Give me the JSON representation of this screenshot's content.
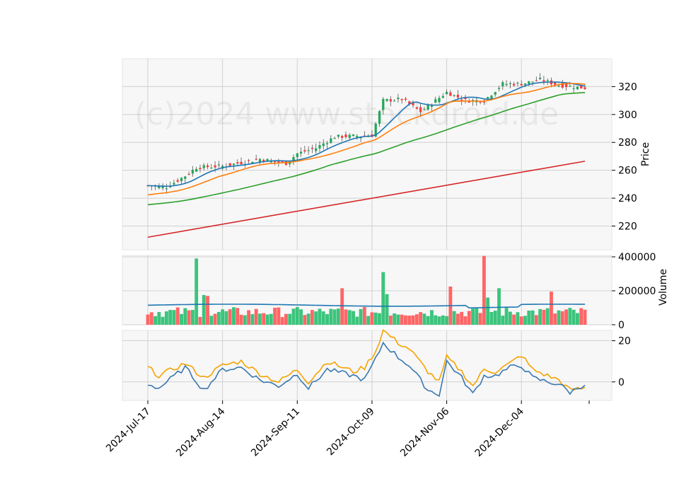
{
  "watermark": "(c)2024 www.stockdroid.de",
  "dates": [
    "2024-Jul-17",
    "2024-Aug-14",
    "2024-Sep-11",
    "2024-Oct-09",
    "2024-Nov-06",
    "2024-Dec-04"
  ],
  "colors": {
    "up": "#26a65b",
    "down": "#ff3b3b",
    "ma_fast": "#1f77b4",
    "ma_mid": "#ff7f0e",
    "ma_slow": "#2ca02c",
    "ma_long": "#d62728",
    "osc_a": "#f5a300",
    "osc_b": "#3a78b0",
    "panel_bg": "#f7f7f7",
    "grid": "#d0d0d0"
  },
  "chart_data": [
    {
      "type": "candlestick",
      "ylabel": "Price",
      "ylim": [
        203,
        340
      ],
      "yticks": [
        220,
        240,
        260,
        280,
        300,
        320
      ],
      "x_start": "2024-Jul-17",
      "x_end": "2024-Dec-27",
      "close_anchors": [
        [
          "2024-Jul-17",
          249
        ],
        [
          "2024-Jul-24",
          248
        ],
        [
          "2024-Jul-31",
          256
        ],
        [
          "2024-Aug-05",
          262
        ],
        [
          "2024-Aug-14",
          263
        ],
        [
          "2024-Aug-28",
          268
        ],
        [
          "2024-Sep-06",
          265
        ],
        [
          "2024-Sep-11",
          272
        ],
        [
          "2024-Sep-18",
          276
        ],
        [
          "2024-Sep-25",
          284
        ],
        [
          "2024-Oct-09",
          285
        ],
        [
          "2024-Oct-14",
          310
        ],
        [
          "2024-Oct-21",
          311
        ],
        [
          "2024-Oct-28",
          302
        ],
        [
          "2024-Nov-06",
          316
        ],
        [
          "2024-Nov-13",
          310
        ],
        [
          "2024-Nov-20",
          310
        ],
        [
          "2024-Nov-27",
          322
        ],
        [
          "2024-Dec-04",
          322
        ],
        [
          "2024-Dec-11",
          325
        ],
        [
          "2024-Dec-18",
          321
        ],
        [
          "2024-Dec-27",
          319
        ]
      ],
      "moving_averages": [
        {
          "window": 10,
          "color": "#1f77b4"
        },
        {
          "window": 20,
          "color": "#ff7f0e"
        },
        {
          "window": 50,
          "color": "#2ca02c"
        }
      ],
      "long_average_line": {
        "start": [
          "2024-Jul-17",
          212
        ],
        "end": [
          "2024-Dec-27",
          266.5
        ],
        "color": "#d62728"
      }
    },
    {
      "type": "bar",
      "ylabel": "Volume",
      "ylim": [
        0,
        400000
      ],
      "yticks": [
        0,
        200000,
        400000
      ],
      "typical_volume": 75000,
      "spikes": [
        [
          "2024-Aug-05",
          390000
        ],
        [
          "2024-Aug-07",
          175000
        ],
        [
          "2024-Aug-08",
          170000
        ],
        [
          "2024-Sep-27",
          215000
        ],
        [
          "2024-Oct-14",
          310000
        ],
        [
          "2024-Oct-15",
          180000
        ],
        [
          "2024-Nov-07",
          225000
        ],
        [
          "2024-Nov-20",
          405000
        ],
        [
          "2024-Nov-21",
          160000
        ],
        [
          "2024-Nov-26",
          215000
        ],
        [
          "2024-Dec-16",
          195000
        ]
      ],
      "average_line": {
        "level": 115000,
        "color": "#1f77b4"
      }
    },
    {
      "type": "line",
      "ylim": [
        -9,
        25
      ],
      "yticks": [
        0,
        20
      ],
      "series": [
        {
          "color": "#f5a300",
          "anchors": [
            [
              "2024-Jul-17",
              7
            ],
            [
              "2024-Jul-22",
              3
            ],
            [
              "2024-Jul-31",
              9
            ],
            [
              "2024-Aug-07",
              2
            ],
            [
              "2024-Aug-14",
              8
            ],
            [
              "2024-Aug-21",
              10
            ],
            [
              "2024-Aug-28",
              4
            ],
            [
              "2024-Sep-04",
              0
            ],
            [
              "2024-Sep-11",
              6
            ],
            [
              "2024-Sep-16",
              0
            ],
            [
              "2024-Sep-23",
              10
            ],
            [
              "2024-Oct-02",
              5
            ],
            [
              "2024-Oct-07",
              7
            ],
            [
              "2024-Oct-10",
              15
            ],
            [
              "2024-Oct-14",
              25
            ],
            [
              "2024-Oct-18",
              19
            ],
            [
              "2024-Oct-23",
              16
            ],
            [
              "2024-Oct-30",
              5
            ],
            [
              "2024-Nov-04",
              0
            ],
            [
              "2024-Nov-06",
              12
            ],
            [
              "2024-Nov-12",
              5
            ],
            [
              "2024-Nov-15",
              -2
            ],
            [
              "2024-Nov-20",
              6
            ],
            [
              "2024-Nov-25",
              5
            ],
            [
              "2024-Nov-29",
              9
            ],
            [
              "2024-Dec-04",
              13
            ],
            [
              "2024-Dec-09",
              6
            ],
            [
              "2024-Dec-13",
              3
            ],
            [
              "2024-Dec-18",
              1
            ],
            [
              "2024-Dec-23",
              -4
            ],
            [
              "2024-Dec-27",
              -3
            ]
          ]
        },
        {
          "color": "#3a78b0",
          "anchors": [
            [
              "2024-Jul-17",
              -1
            ],
            [
              "2024-Jul-22",
              -3
            ],
            [
              "2024-Jul-31",
              7
            ],
            [
              "2024-Aug-07",
              -4
            ],
            [
              "2024-Aug-14",
              6
            ],
            [
              "2024-Aug-21",
              7
            ],
            [
              "2024-Aug-28",
              1
            ],
            [
              "2024-Sep-04",
              -2
            ],
            [
              "2024-Sep-11",
              4
            ],
            [
              "2024-Sep-16",
              -3
            ],
            [
              "2024-Sep-23",
              6
            ],
            [
              "2024-Oct-02",
              3
            ],
            [
              "2024-Oct-07",
              1
            ],
            [
              "2024-Oct-10",
              11
            ],
            [
              "2024-Oct-14",
              19
            ],
            [
              "2024-Oct-18",
              12
            ],
            [
              "2024-Oct-23",
              8
            ],
            [
              "2024-Oct-30",
              -4
            ],
            [
              "2024-Nov-04",
              -6
            ],
            [
              "2024-Nov-06",
              10
            ],
            [
              "2024-Nov-12",
              2
            ],
            [
              "2024-Nov-15",
              -6
            ],
            [
              "2024-Nov-20",
              3
            ],
            [
              "2024-Nov-25",
              3
            ],
            [
              "2024-Nov-29",
              7
            ],
            [
              "2024-Dec-04",
              8
            ],
            [
              "2024-Dec-09",
              2
            ],
            [
              "2024-Dec-13",
              0
            ],
            [
              "2024-Dec-18",
              -1
            ],
            [
              "2024-Dec-23",
              -5
            ],
            [
              "2024-Dec-27",
              -1
            ]
          ]
        }
      ]
    }
  ]
}
